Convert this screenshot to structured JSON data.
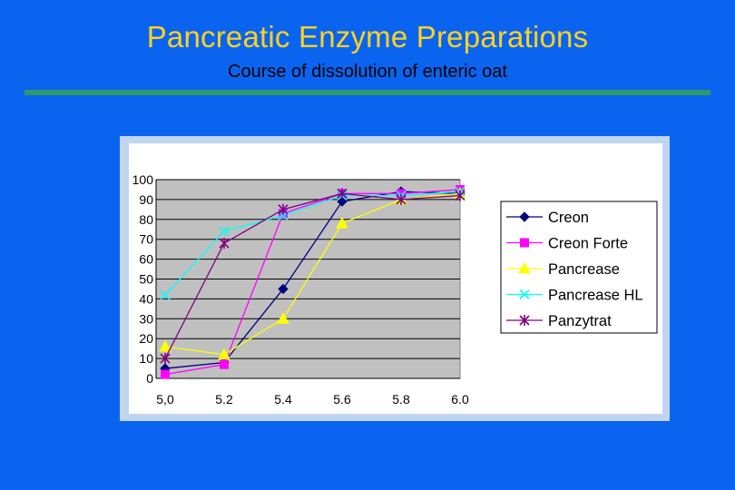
{
  "slide": {
    "title": "Pancreatic Enzyme Preparations",
    "subtitle": "Course of dissolution of enteric oat"
  },
  "colors": {
    "background": "#0a64f0",
    "title": "#ffd21e",
    "rule": "#2e9a6a",
    "plot_area": "#c0c0c0"
  },
  "chart_data": {
    "type": "line",
    "title": "",
    "xlabel": "",
    "ylabel": "",
    "categories": [
      "5,0",
      "5.2",
      "5.4",
      "5.6",
      "5.8",
      "6.0"
    ],
    "ylim": [
      0,
      100
    ],
    "yticks": [
      0,
      10,
      20,
      30,
      40,
      50,
      60,
      70,
      80,
      90,
      100
    ],
    "grid": true,
    "legend_position": "right",
    "series": [
      {
        "name": "Creon",
        "color": "#000080",
        "marker": "diamond",
        "values": [
          5,
          8,
          45,
          89,
          94,
          93
        ]
      },
      {
        "name": "Creon Forte",
        "color": "#ff00ff",
        "marker": "square",
        "values": [
          2,
          7,
          83,
          93,
          93,
          95
        ]
      },
      {
        "name": "Pancrease",
        "color": "#ffff00",
        "marker": "triangle",
        "values": [
          16,
          12,
          30,
          78,
          90,
          93
        ]
      },
      {
        "name": "Pancrease HL",
        "color": "#00ffff",
        "marker": "x",
        "values": [
          42,
          74,
          82,
          92,
          92,
          94
        ]
      },
      {
        "name": "Panzytrat",
        "color": "#800080",
        "marker": "star",
        "values": [
          10,
          68,
          85,
          93,
          90,
          92
        ]
      }
    ]
  }
}
